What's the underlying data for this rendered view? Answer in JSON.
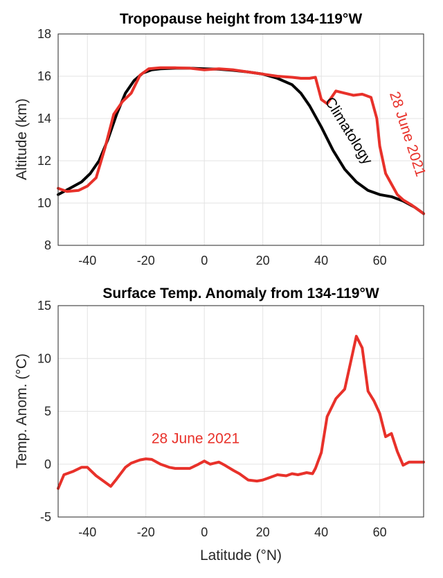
{
  "colors": {
    "red": "#e8312a",
    "black": "#000000"
  },
  "chart_data": [
    {
      "type": "line",
      "title": "Tropopause height from 134-119°W",
      "xlabel": "",
      "ylabel": "Altitude (km)",
      "xlim": [
        -50,
        75
      ],
      "ylim": [
        8,
        18
      ],
      "xticks": [
        -40,
        -20,
        0,
        20,
        40,
        60
      ],
      "yticks": [
        8,
        10,
        12,
        14,
        16,
        18
      ],
      "xtick_labels": [
        "-40",
        "-20",
        "0",
        "20",
        "40",
        "60"
      ],
      "ytick_labels": [
        "8",
        "10",
        "12",
        "14",
        "16",
        "18"
      ],
      "series": [
        {
          "name": "Climatology",
          "color": "#000000",
          "x": [
            -50,
            -46,
            -42,
            -39,
            -36,
            -33,
            -30,
            -27,
            -24,
            -21,
            -18,
            -15,
            -10,
            -5,
            0,
            5,
            10,
            15,
            20,
            25,
            30,
            33,
            36,
            40,
            44,
            48,
            52,
            56,
            60,
            64,
            68,
            72,
            75
          ],
          "y": [
            10.4,
            10.7,
            11.0,
            11.4,
            12.0,
            13.0,
            14.2,
            15.2,
            15.8,
            16.15,
            16.3,
            16.35,
            16.38,
            16.38,
            16.35,
            16.33,
            16.28,
            16.2,
            16.1,
            15.9,
            15.6,
            15.2,
            14.6,
            13.6,
            12.5,
            11.6,
            11.0,
            10.6,
            10.4,
            10.3,
            10.1,
            9.8,
            9.5
          ]
        },
        {
          "name": "28 June 2021",
          "color": "#e8312a",
          "x": [
            -50,
            -47,
            -43,
            -40,
            -37,
            -34,
            -31,
            -28,
            -25,
            -22,
            -19,
            -15,
            -10,
            -5,
            0,
            5,
            10,
            15,
            20,
            25,
            30,
            33,
            36,
            38,
            40,
            42,
            45,
            48,
            51,
            54,
            57,
            59,
            60,
            62,
            64,
            66,
            68,
            71,
            75
          ],
          "y": [
            10.7,
            10.55,
            10.6,
            10.8,
            11.2,
            12.6,
            14.2,
            14.8,
            15.2,
            16.05,
            16.35,
            16.4,
            16.4,
            16.38,
            16.3,
            16.35,
            16.3,
            16.2,
            16.1,
            16.0,
            15.95,
            15.9,
            15.9,
            15.95,
            14.9,
            14.7,
            15.3,
            15.2,
            15.1,
            15.15,
            15.0,
            14.0,
            12.7,
            11.4,
            10.9,
            10.4,
            10.15,
            9.9,
            9.5
          ]
        }
      ],
      "annotations": [
        {
          "text": "Climatology",
          "color": "#000000",
          "x": 48,
          "y": 13.3,
          "rotation": 58
        },
        {
          "text": "28 June 2021",
          "color": "#e8312a",
          "x": 68,
          "y": 13.2,
          "rotation": 72
        }
      ]
    },
    {
      "type": "line",
      "title": "Surface Temp. Anomaly from 134-119°W",
      "xlabel": "Latitude (°N)",
      "ylabel": "Temp. Anom. (°C)",
      "xlim": [
        -50,
        75
      ],
      "ylim": [
        -5,
        15
      ],
      "xticks": [
        -40,
        -20,
        0,
        20,
        40,
        60
      ],
      "yticks": [
        -5,
        0,
        5,
        10,
        15
      ],
      "xtick_labels": [
        "-40",
        "-20",
        "0",
        "20",
        "40",
        "60"
      ],
      "ytick_labels": [
        "-5",
        "0",
        "5",
        "10",
        "15"
      ],
      "series": [
        {
          "name": "28 June 2021",
          "color": "#e8312a",
          "x": [
            -50,
            -48,
            -45,
            -42,
            -40,
            -37,
            -35,
            -32,
            -30,
            -27,
            -25,
            -22,
            -20,
            -18,
            -15,
            -12,
            -10,
            -5,
            -2,
            0,
            2,
            5,
            7,
            10,
            12,
            15,
            18,
            20,
            22,
            25,
            28,
            30,
            32,
            35,
            37,
            38,
            40,
            42,
            45,
            48,
            50,
            52,
            54,
            56,
            58,
            60,
            62,
            64,
            66,
            68,
            70,
            72,
            75
          ],
          "y": [
            -2.3,
            -1.0,
            -0.7,
            -0.3,
            -0.3,
            -1.1,
            -1.5,
            -2.1,
            -1.4,
            -0.3,
            0.1,
            0.4,
            0.5,
            0.45,
            0.0,
            -0.3,
            -0.4,
            -0.4,
            0.0,
            0.3,
            0.0,
            0.2,
            -0.1,
            -0.6,
            -0.9,
            -1.5,
            -1.6,
            -1.5,
            -1.3,
            -1.0,
            -1.1,
            -0.9,
            -1.0,
            -0.8,
            -0.9,
            -0.4,
            1.1,
            4.5,
            6.2,
            7.1,
            9.6,
            12.1,
            11.0,
            6.9,
            6.0,
            4.8,
            2.6,
            2.9,
            1.2,
            -0.1,
            0.2,
            0.2,
            0.2
          ]
        }
      ],
      "annotations": [
        {
          "text": "28 June 2021",
          "color": "#e8312a",
          "x": -3,
          "y": 2.0,
          "rotation": 0
        }
      ]
    }
  ]
}
